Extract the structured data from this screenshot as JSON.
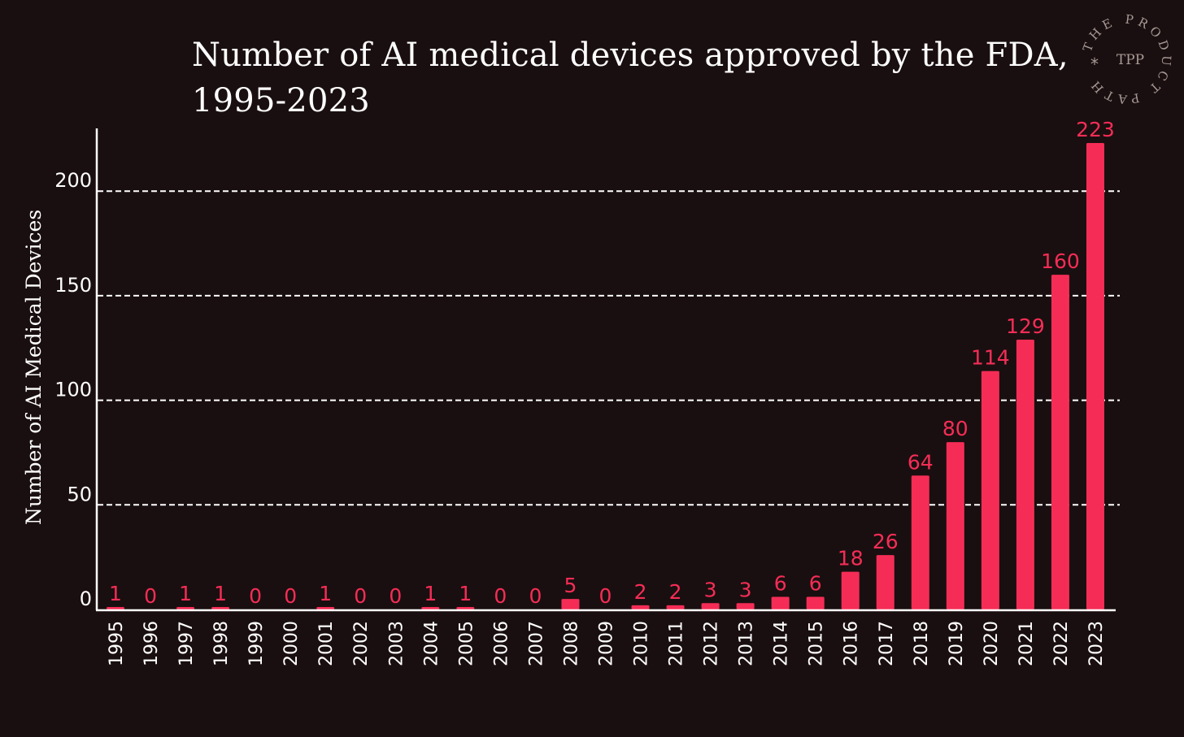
{
  "chart_data": {
    "type": "bar",
    "title": "Number of AI medical devices approved by the FDA,",
    "subtitle": "1995-2023",
    "xlabel": "",
    "ylabel": "Number of AI Medical Devices",
    "ylim": [
      0,
      230
    ],
    "yticks": [
      0,
      50,
      100,
      150,
      200
    ],
    "grid": "horizontal-dashed",
    "categories": [
      "1995",
      "1996",
      "1997",
      "1998",
      "1999",
      "2000",
      "2001",
      "2002",
      "2003",
      "2004",
      "2005",
      "2006",
      "2007",
      "2008",
      "2009",
      "2010",
      "2011",
      "2012",
      "2013",
      "2014",
      "2015",
      "2016",
      "2017",
      "2018",
      "2019",
      "2020",
      "2021",
      "2022",
      "2023"
    ],
    "values": [
      1,
      0,
      1,
      1,
      0,
      0,
      1,
      0,
      0,
      1,
      1,
      0,
      0,
      5,
      0,
      2,
      2,
      3,
      3,
      6,
      6,
      18,
      26,
      64,
      80,
      114,
      129,
      160,
      223
    ],
    "bar_color": "#f52d56",
    "axis_color": "#ffffff"
  },
  "logo": {
    "ring_text": "THE PRODUCT PATH",
    "center_text": "TPP",
    "star": "*",
    "color": "#a89a96"
  }
}
